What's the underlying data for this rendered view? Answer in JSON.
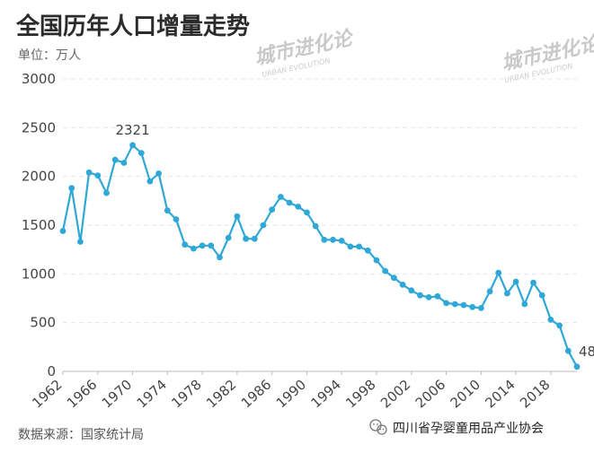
{
  "header": {
    "title": "全国历年人口增量走势",
    "unit": "单位：万人"
  },
  "footer": {
    "source": "数据来源：国家统计局",
    "association": "四川省孕婴童用品产业协会"
  },
  "watermark": {
    "main": "城市进化论",
    "sub": "URBAN EVOLUTION"
  },
  "colors": {
    "series": "#2fa8d8",
    "grid": "#e6e6e6",
    "title": "#2b2b2b"
  },
  "chart_data": {
    "type": "line",
    "title": "全国历年人口增量走势",
    "ylabel": "单位：万人",
    "xlabel": "",
    "ylim": [
      0,
      3000
    ],
    "xlim": [
      1962,
      2021
    ],
    "y_ticks": [
      0,
      500,
      1000,
      1500,
      2000,
      2500,
      3000
    ],
    "x_ticks": [
      1962,
      1966,
      1970,
      1974,
      1978,
      1982,
      1986,
      1990,
      1994,
      1998,
      2002,
      2006,
      2010,
      2014,
      2018
    ],
    "grid": true,
    "grid_style": "dashed-horizontal",
    "annotations": [
      {
        "x": 1970,
        "label": "2321"
      },
      {
        "x": 2021,
        "label": "48"
      }
    ],
    "series": [
      {
        "x": [
          1962,
          1963,
          1964,
          1965,
          1966,
          1967,
          1968,
          1969,
          1970,
          1971,
          1972,
          1973,
          1974,
          1975,
          1976,
          1977,
          1978,
          1979,
          1980,
          1981,
          1982,
          1983,
          1984,
          1985,
          1986,
          1987,
          1988,
          1989,
          1990,
          1991,
          1992,
          1993,
          1994,
          1995,
          1996,
          1997,
          1998,
          1999,
          2000,
          2001,
          2002,
          2003,
          2004,
          2005,
          2006,
          2007,
          2008,
          2009,
          2010,
          2011,
          2012,
          2013,
          2014,
          2015,
          2016,
          2017,
          2018,
          2019,
          2020,
          2021
        ],
        "values": [
          1440,
          1880,
          1330,
          2040,
          2010,
          1830,
          2170,
          2140,
          2321,
          2240,
          1950,
          2030,
          1650,
          1560,
          1300,
          1260,
          1290,
          1290,
          1170,
          1370,
          1590,
          1360,
          1360,
          1500,
          1660,
          1790,
          1730,
          1690,
          1630,
          1490,
          1350,
          1350,
          1340,
          1280,
          1280,
          1240,
          1140,
          1030,
          960,
          890,
          830,
          780,
          760,
          770,
          700,
          690,
          680,
          660,
          650,
          820,
          1010,
          800,
          920,
          690,
          910,
          780,
          530,
          470,
          210,
          48
        ]
      }
    ]
  }
}
